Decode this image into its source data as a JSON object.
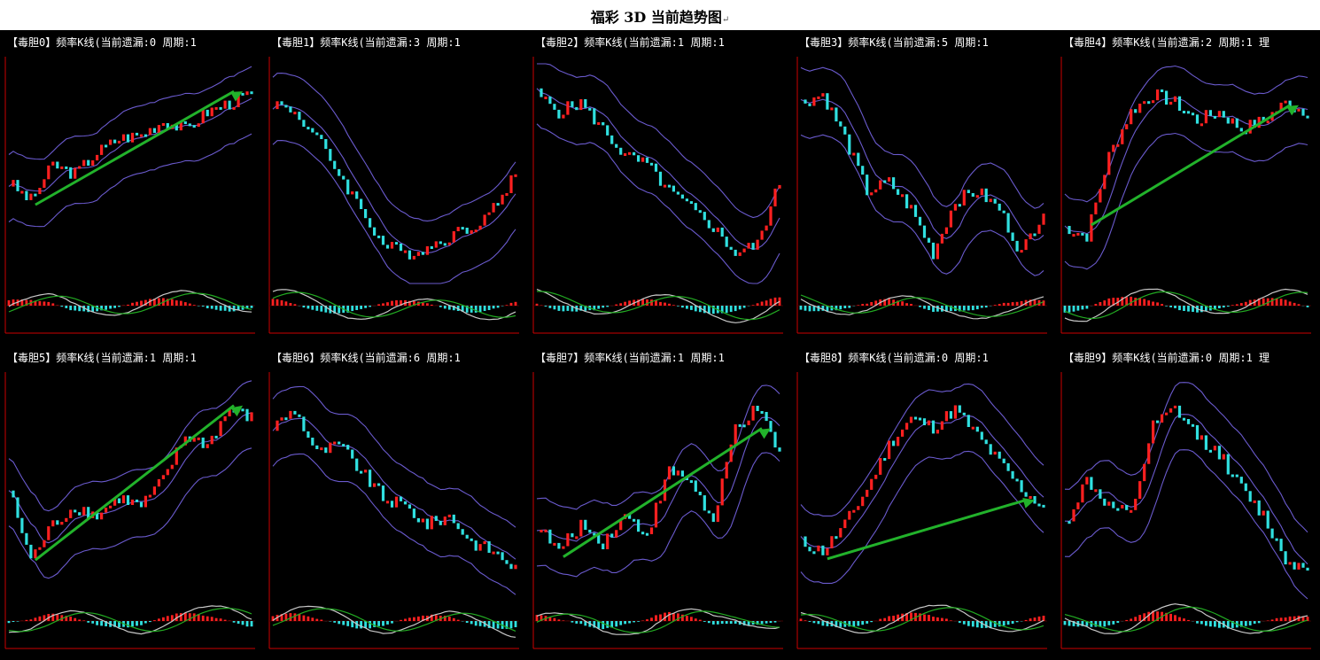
{
  "page": {
    "title": "福彩 3D 当前趋势图",
    "title_mark": "↵"
  },
  "colors": {
    "background": "#000000",
    "candle_up": "#ff2020",
    "candle_down": "#30e0e0",
    "band": "#6a5acd",
    "macd_fast": "#c8c8c8",
    "macd_slow": "#22aa22",
    "arrow": "#22b22b",
    "axis": "#cc0000"
  },
  "panels": [
    {
      "label": "【毒胆0】频率K线(当前遗漏:0 周期:1",
      "trend_arrow": true
    },
    {
      "label": "【毒胆1】频率K线(当前遗漏:3 周期:1",
      "trend_arrow": false
    },
    {
      "label": "【毒胆2】频率K线(当前遗漏:1 周期:1",
      "trend_arrow": false
    },
    {
      "label": "【毒胆3】频率K线(当前遗漏:5 周期:1",
      "trend_arrow": false
    },
    {
      "label": "【毒胆4】频率K线(当前遗漏:2 周期:1 理",
      "trend_arrow": true
    },
    {
      "label": "【毒胆5】频率K线(当前遗漏:1 周期:1",
      "trend_arrow": true
    },
    {
      "label": "【毒胆6】频率K线(当前遗漏:6 周期:1",
      "trend_arrow": false
    },
    {
      "label": "【毒胆7】频率K线(当前遗漏:1 周期:1",
      "trend_arrow": true
    },
    {
      "label": "【毒胆8】频率K线(当前遗漏:0 周期:1",
      "trend_arrow": true
    },
    {
      "label": "【毒胆9】频率K线(当前遗漏:0 周期:1 理",
      "trend_arrow": false
    }
  ],
  "chart_data": [
    {
      "type": "candlestick",
      "title": "【毒胆0】频率K线(当前遗漏:0 周期:1",
      "series_shape": [
        0.45,
        0.35,
        0.55,
        0.5,
        0.62,
        0.7,
        0.72,
        0.8,
        0.75,
        0.85,
        0.9,
        0.95
      ],
      "trend_arrow": true
    },
    {
      "type": "candlestick",
      "title": "【毒胆1】频率K线(当前遗漏:3 周期:1",
      "series_shape": [
        0.9,
        0.85,
        0.7,
        0.5,
        0.3,
        0.1,
        0.05,
        0.08,
        0.15,
        0.2,
        0.3,
        0.5
      ],
      "trend_arrow": false
    },
    {
      "type": "candlestick",
      "title": "【毒胆2】频率K线(当前遗漏:1 周期:1",
      "series_shape": [
        0.95,
        0.85,
        0.9,
        0.75,
        0.6,
        0.55,
        0.4,
        0.3,
        0.2,
        0.05,
        0.1,
        0.45
      ],
      "trend_arrow": false
    },
    {
      "type": "candlestick",
      "title": "【毒胆3】频率K线(当前遗漏:5 周期:1",
      "series_shape": [
        0.9,
        0.95,
        0.7,
        0.4,
        0.45,
        0.3,
        0.05,
        0.35,
        0.4,
        0.3,
        0.05,
        0.3
      ],
      "trend_arrow": false
    },
    {
      "type": "candlestick",
      "title": "【毒胆4】频率K线(当前遗漏:2 周期:1 理",
      "series_shape": [
        0.2,
        0.15,
        0.6,
        0.85,
        0.95,
        0.9,
        0.8,
        0.85,
        0.75,
        0.8,
        0.9,
        0.85
      ],
      "trend_arrow": true
    },
    {
      "type": "candlestick",
      "title": "【毒胆5】频率K线(当前遗漏:1 周期:1",
      "series_shape": [
        0.5,
        0.1,
        0.3,
        0.4,
        0.35,
        0.45,
        0.4,
        0.55,
        0.8,
        0.75,
        0.95,
        0.9
      ],
      "trend_arrow": true
    },
    {
      "type": "candlestick",
      "title": "【毒胆6】频率K线(当前遗漏:6 周期:1",
      "series_shape": [
        0.85,
        0.95,
        0.7,
        0.75,
        0.6,
        0.45,
        0.4,
        0.3,
        0.35,
        0.2,
        0.15,
        0.05
      ],
      "trend_arrow": false
    },
    {
      "type": "candlestick",
      "title": "【毒胆7】频率K线(当前遗漏:1 周期:1",
      "series_shape": [
        0.3,
        0.15,
        0.3,
        0.2,
        0.35,
        0.25,
        0.6,
        0.55,
        0.3,
        0.85,
        0.95,
        0.7
      ],
      "trend_arrow": true
    },
    {
      "type": "candlestick",
      "title": "【毒胆8】频率K线(当前遗漏:0 周期:1",
      "series_shape": [
        0.2,
        0.15,
        0.3,
        0.5,
        0.75,
        0.9,
        0.85,
        0.95,
        0.8,
        0.65,
        0.5,
        0.4
      ],
      "trend_arrow": true
    },
    {
      "type": "candlestick",
      "title": "【毒胆9】频率K线(当前遗漏:0 周期:1 理",
      "series_shape": [
        0.3,
        0.55,
        0.4,
        0.35,
        0.85,
        0.95,
        0.8,
        0.7,
        0.5,
        0.35,
        0.1,
        0.05
      ],
      "trend_arrow": false
    }
  ]
}
